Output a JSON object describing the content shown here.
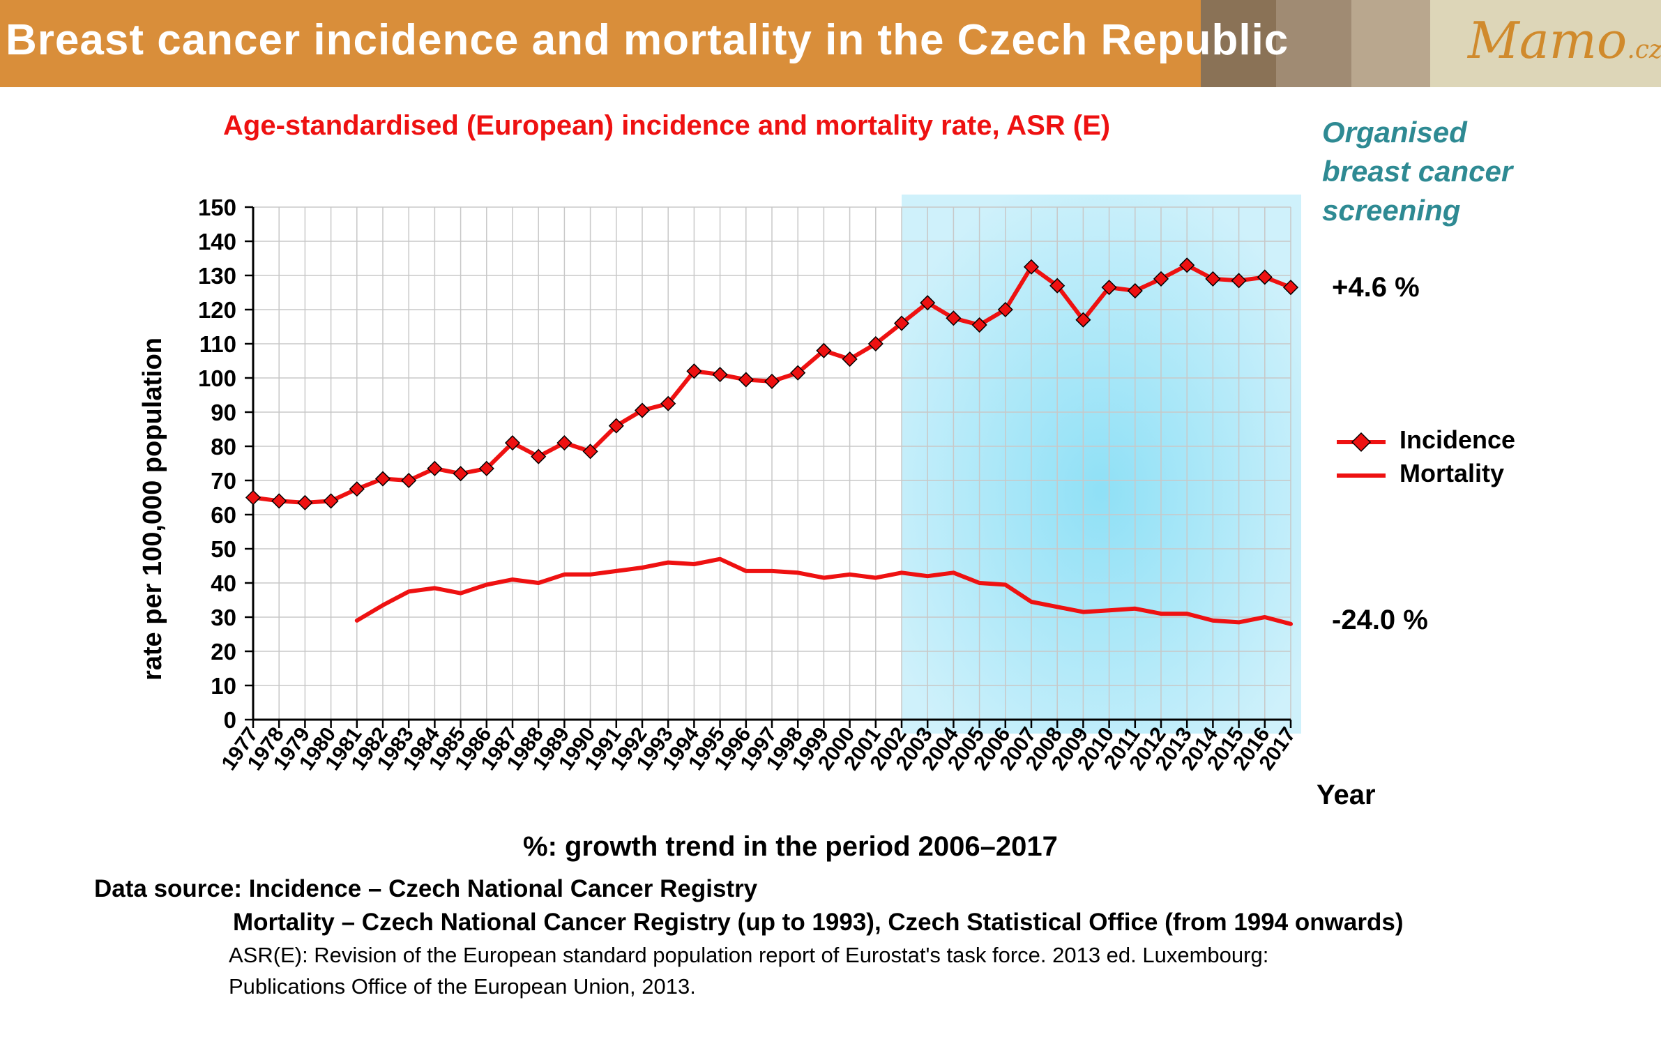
{
  "header": {
    "title": "Breast cancer incidence and mortality in the Czech Republic",
    "logo_text": "Mamo",
    "logo_suffix": ".cz",
    "band_colors": [
      "#d98e3a",
      "#8a7256",
      "#a08b73",
      "#b9a78e",
      "#ddd6b8"
    ]
  },
  "annotations": {
    "screening_line1": "Organised",
    "screening_line2": "breast cancer",
    "screening_line3": "screening",
    "incidence_change": "+4.6 %",
    "mortality_change": "-24.0 %",
    "trend_note": "%: growth trend in the period 2006–2017"
  },
  "sources": {
    "line1": "Data source: Incidence – Czech National Cancer Registry",
    "line2": "Mortality – Czech National Cancer Registry (up to 1993), Czech Statistical Office (from 1994 onwards)",
    "ref_line1": "ASR(E): Revision of the European standard population report of Eurostat's task force. 2013 ed. Luxembourg:",
    "ref_line2": "Publications Office of the European Union, 2013."
  },
  "chart_data": {
    "type": "line",
    "title": "Age-standardised (European) incidence and mortality rate, ASR (E)",
    "xlabel": "Year",
    "ylabel": "rate per 100,000 population",
    "ylim": [
      0,
      150
    ],
    "yticks": [
      0,
      10,
      20,
      30,
      40,
      50,
      60,
      70,
      80,
      90,
      100,
      110,
      120,
      130,
      140,
      150
    ],
    "grid": true,
    "legend_position": "right",
    "highlight_region": {
      "from": "2002",
      "to": "2017",
      "label": "Organised breast cancer screening",
      "color": "#bfeaf8"
    },
    "categories": [
      "1977",
      "1978",
      "1979",
      "1980",
      "1981",
      "1982",
      "1983",
      "1984",
      "1985",
      "1986",
      "1987",
      "1988",
      "1989",
      "1990",
      "1991",
      "1992",
      "1993",
      "1994",
      "1995",
      "1996",
      "1997",
      "1998",
      "1999",
      "2000",
      "2001",
      "2002",
      "2003",
      "2004",
      "2005",
      "2006",
      "2007",
      "2008",
      "2009",
      "2010",
      "2011",
      "2012",
      "2013",
      "2014",
      "2015",
      "2016",
      "2017"
    ],
    "series": [
      {
        "name": "Incidence",
        "color": "#ee1111",
        "marker": "diamond",
        "values": [
          65,
          64,
          63.5,
          64,
          67.5,
          70.5,
          70,
          73.5,
          72,
          73.5,
          81,
          77,
          81,
          78.5,
          86,
          90.5,
          92.5,
          102,
          101,
          99.5,
          99,
          101.5,
          108,
          105.5,
          110,
          116,
          122,
          117.5,
          115.5,
          120,
          132.5,
          127,
          117,
          126.5,
          125.5,
          129,
          133,
          129,
          128.5,
          129.5,
          126.5
        ]
      },
      {
        "name": "Mortality",
        "color": "#ee1111",
        "marker": "none",
        "values": [
          null,
          null,
          null,
          null,
          29,
          33.5,
          37.5,
          38.5,
          37,
          39.5,
          41,
          40,
          42.5,
          42.5,
          43.5,
          44.5,
          46,
          45.5,
          47,
          43.5,
          43.5,
          43,
          41.5,
          42.5,
          41.5,
          43,
          42,
          43,
          40,
          39.5,
          34.5,
          33,
          31.5,
          32,
          32.5,
          31,
          31,
          29,
          28.5,
          30,
          28
        ]
      }
    ]
  }
}
